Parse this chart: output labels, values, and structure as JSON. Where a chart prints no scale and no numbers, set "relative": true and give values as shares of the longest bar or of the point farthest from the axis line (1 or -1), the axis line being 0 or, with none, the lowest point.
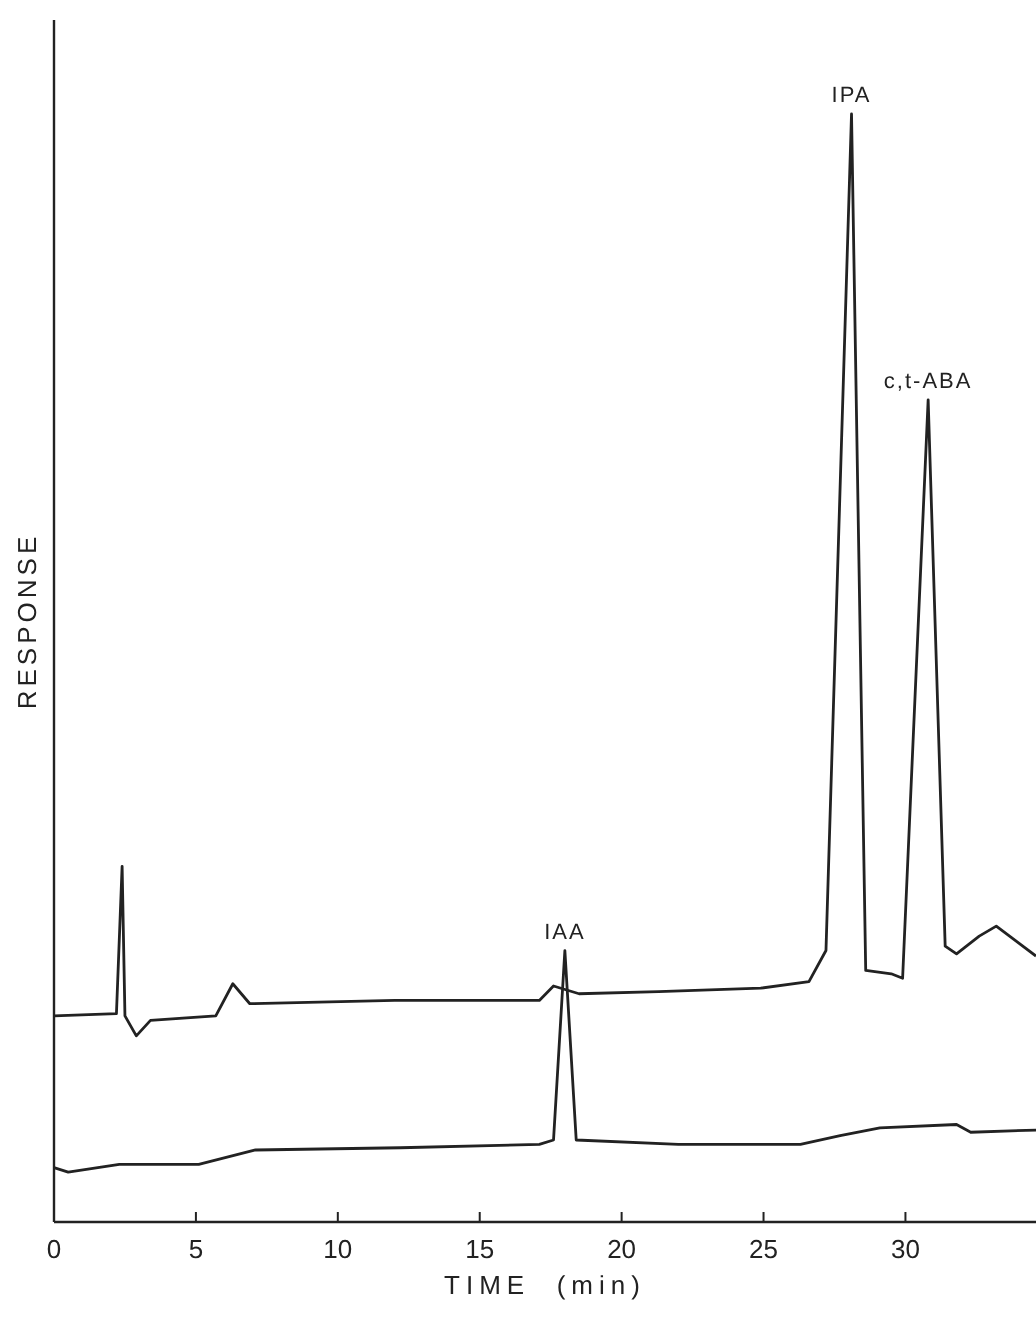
{
  "chart_data": {
    "type": "line",
    "relative": true,
    "xlabel": "TIME  (min)",
    "ylabel": "RESPONSE",
    "xlim": [
      0,
      34.6
    ],
    "xticks": [
      0,
      5,
      10,
      15,
      20,
      25,
      30
    ],
    "tick_labels": "x",
    "grid": false,
    "marker": "none",
    "line_style": "solid",
    "series": [
      {
        "color": "#222222",
        "x": [
          0,
          2.2,
          2.4,
          2.5,
          2.9,
          3.4,
          5.7,
          6.3,
          6.9,
          12.0,
          17.1,
          17.6,
          18.5,
          21.3,
          24.9,
          26.6,
          27.2,
          28.1,
          28.6,
          29.5,
          29.9,
          30.8,
          31.4,
          31.8,
          32.6,
          33.2,
          34.6
        ],
        "values": [
          0.186,
          0.188,
          0.321,
          0.186,
          0.168,
          0.182,
          0.186,
          0.215,
          0.197,
          0.2,
          0.2,
          0.213,
          0.206,
          0.208,
          0.211,
          0.217,
          0.245,
          1.0,
          0.227,
          0.224,
          0.22,
          0.742,
          0.249,
          0.242,
          0.258,
          0.267,
          0.24
        ]
      },
      {
        "color": "#222222",
        "x": [
          0,
          0.5,
          2.3,
          5.1,
          7.1,
          12.2,
          17.1,
          17.6,
          18.0,
          18.4,
          22,
          26.3,
          27.7,
          29.1,
          31.8,
          32.3,
          34.6
        ],
        "values": [
          0.049,
          0.045,
          0.052,
          0.052,
          0.065,
          0.067,
          0.07,
          0.074,
          0.245,
          0.074,
          0.07,
          0.07,
          0.078,
          0.085,
          0.088,
          0.081,
          0.083
        ]
      }
    ],
    "annotations": [
      {
        "text": "IPA",
        "x": 28.1,
        "y": 1.0
      },
      {
        "text": "c,t-ABA",
        "x": 30.8,
        "y": 0.742
      },
      {
        "text": "IAA",
        "x": 18.0,
        "y": 0.245
      }
    ]
  }
}
